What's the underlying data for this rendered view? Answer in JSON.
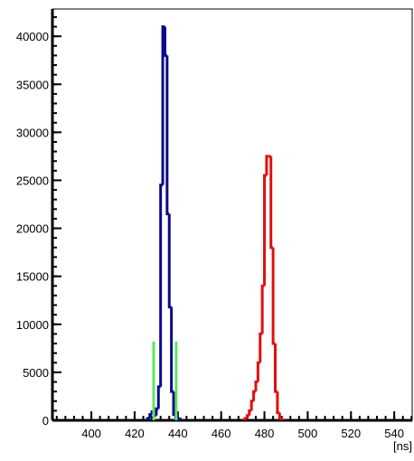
{
  "chart_data": {
    "type": "histogram",
    "x_label": "[ns]",
    "xlim": [
      382,
      548.3
    ],
    "ylim": [
      0,
      42840
    ],
    "xticks": [
      400,
      420,
      440,
      460,
      480,
      500,
      520,
      540
    ],
    "yticks": [
      0,
      5000,
      10000,
      15000,
      20000,
      25000,
      30000,
      35000,
      40000
    ],
    "series": [
      {
        "color": "#0a0a8c",
        "bins": [
          426,
          427,
          428,
          429,
          430,
          431,
          432,
          433,
          434,
          435,
          436,
          437,
          438,
          439,
          440,
          441
        ],
        "values": [
          200,
          600,
          900,
          500,
          1200,
          3500,
          24500,
          41000,
          38000,
          21500,
          11800,
          3000,
          600,
          300,
          150
        ]
      },
      {
        "color": "#e01010",
        "bins": [
          471,
          472,
          473,
          474,
          475,
          476,
          477,
          478,
          479,
          480,
          481,
          482,
          483,
          484,
          485,
          486,
          487,
          488
        ],
        "values": [
          200,
          500,
          1000,
          2000,
          3000,
          4000,
          6000,
          9000,
          14000,
          25500,
          27500,
          27500,
          18000,
          8000,
          3000,
          800,
          200
        ]
      }
    ],
    "lines": {
      "color": "#5ee65e",
      "x": [
        428.8,
        439.2
      ],
      "values": [
        8200,
        8200
      ]
    }
  }
}
